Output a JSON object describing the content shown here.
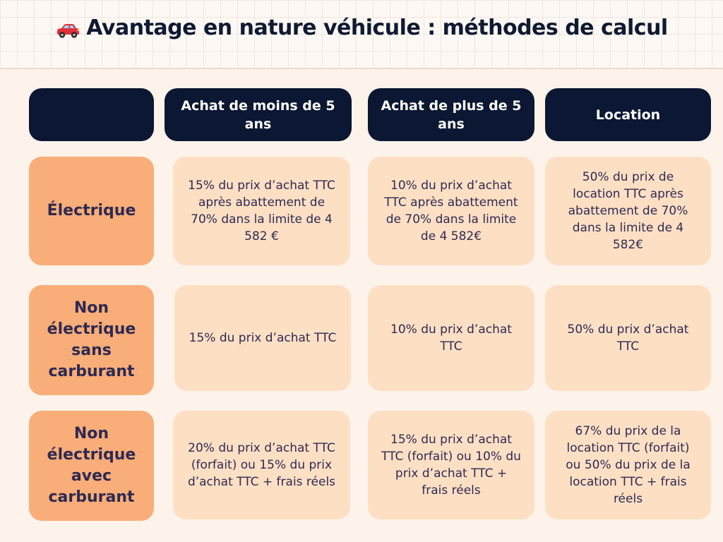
{
  "title": "Avantage en nature véhicule : méthodes de calcul",
  "icons": {
    "title_icon": "red-car-icon"
  },
  "colors": {
    "header_dark": "#0b1733",
    "row_label": "#f9ad78",
    "cell": "#fddfc4",
    "text": "#2e2a52",
    "background": "#fdf3ea"
  },
  "columns": [
    "Achat de moins de 5 ans",
    "Achat de plus de 5 ans",
    "Location"
  ],
  "rows": [
    {
      "label": "Électrique",
      "cells": [
        "15% du prix d’achat TTC après abattement de 70% dans la limite de 4 582 €",
        "10% du prix d’achat TTC après abattement de 70% dans la limite de 4 582€",
        "50% du prix de location TTC après abattement de 70% dans la limite de 4 582€"
      ]
    },
    {
      "label": "Non électrique sans carburant",
      "cells": [
        "15% du prix d’achat TTC",
        "10% du prix d’achat TTC",
        "50% du prix d’achat TTC"
      ]
    },
    {
      "label": "Non électrique avec carburant",
      "cells": [
        "20% du prix d’achat TTC (forfait) ou 15% du prix d’achat TTC + frais réels",
        "15% du prix d’achat TTC (forfait) ou 10% du prix d’achat TTC + frais réels",
        "67% du prix de la location TTC (forfait) ou 50% du prix de la location TTC + frais réels"
      ]
    }
  ]
}
